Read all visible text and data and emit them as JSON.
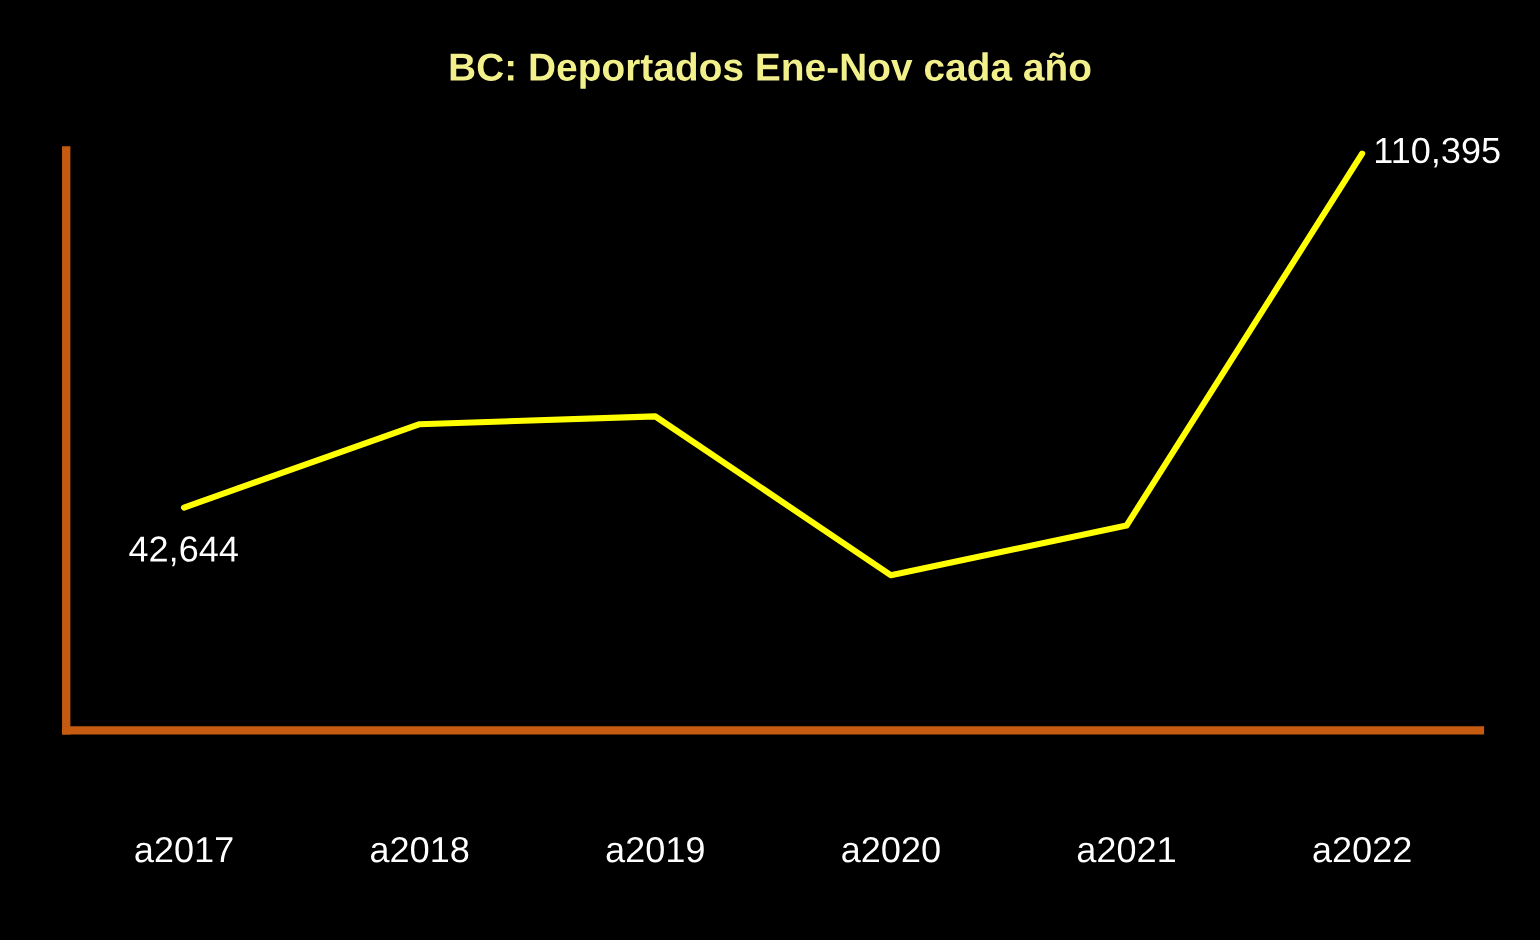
{
  "chart_data": {
    "type": "line",
    "title": "BC: Deportados Ene-Nov cada año",
    "categories": [
      "a2017",
      "a2018",
      "a2019",
      "a2020",
      "a2021",
      "a2022"
    ],
    "series": [
      {
        "color": "#ffff00",
        "values": [
          42644,
          58600,
          60100,
          29700,
          39200,
          110395
        ],
        "value_labels": [
          "42,644",
          null,
          null,
          null,
          null,
          "110,395"
        ]
      }
    ],
    "ylim": [
      0,
      111000
    ],
    "tick_labels": "x",
    "grid": false,
    "legend": false,
    "marker": "none",
    "line_style": "solid"
  }
}
